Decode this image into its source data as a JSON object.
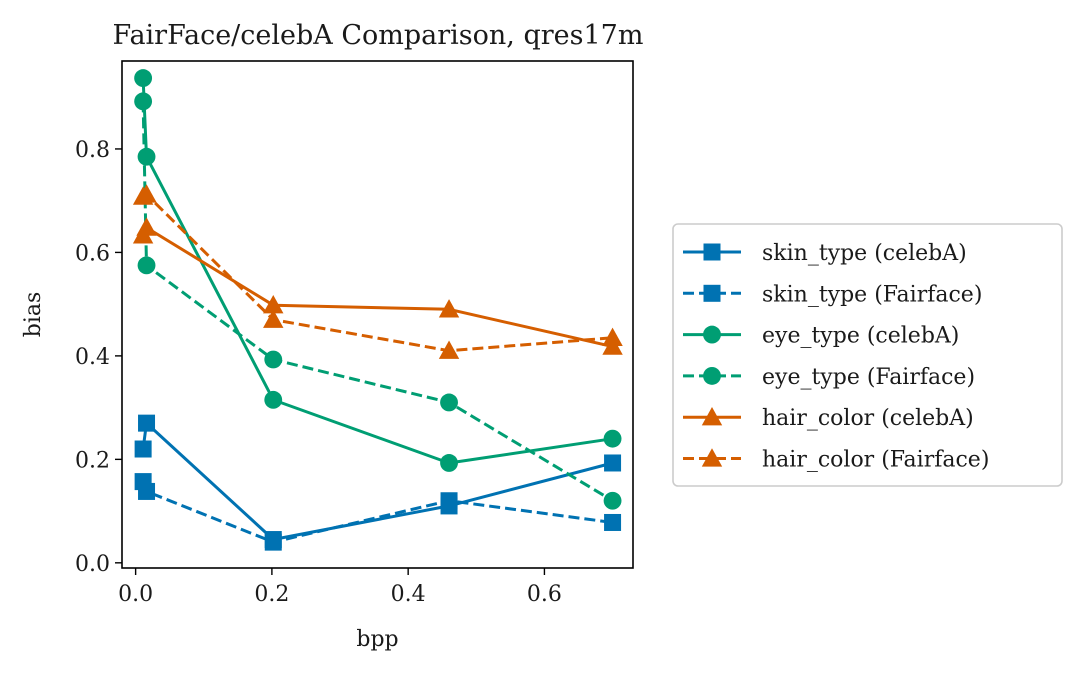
{
  "chart_data": {
    "type": "line",
    "title": "FairFace/celebA Comparison, qres17m",
    "xlabel": "bpp",
    "ylabel": "bias",
    "xlim": [
      -0.02,
      0.73
    ],
    "ylim": [
      -0.01,
      0.97
    ],
    "xticks": [
      0.0,
      0.2,
      0.4,
      0.6
    ],
    "xtick_labels": [
      "0.0",
      "0.2",
      "0.4",
      "0.6"
    ],
    "yticks": [
      0.0,
      0.2,
      0.4,
      0.6,
      0.8
    ],
    "ytick_labels": [
      "0.0",
      "0.2",
      "0.4",
      "0.6",
      "0.8"
    ],
    "grid": false,
    "legend_position": "outside-right",
    "series": [
      {
        "name": "skin_type (celebA)",
        "color": "#0072B2",
        "dash": "solid",
        "marker": "square",
        "x": [
          0.011,
          0.016,
          0.202,
          0.46,
          0.7
        ],
        "y": [
          0.22,
          0.27,
          0.045,
          0.11,
          0.193
        ]
      },
      {
        "name": "skin_type (Fairface)",
        "color": "#0072B2",
        "dash": "dashed",
        "marker": "square",
        "x": [
          0.011,
          0.016,
          0.202,
          0.46,
          0.7
        ],
        "y": [
          0.157,
          0.138,
          0.04,
          0.12,
          0.078
        ]
      },
      {
        "name": "eye_type (celebA)",
        "color": "#009E73",
        "dash": "solid",
        "marker": "circle",
        "x": [
          0.011,
          0.016,
          0.202,
          0.46,
          0.7
        ],
        "y": [
          0.937,
          0.785,
          0.315,
          0.193,
          0.24
        ]
      },
      {
        "name": "eye_type (Fairface)",
        "color": "#009E73",
        "dash": "dashed",
        "marker": "circle",
        "x": [
          0.011,
          0.016,
          0.202,
          0.46,
          0.7
        ],
        "y": [
          0.892,
          0.575,
          0.393,
          0.31,
          0.12
        ]
      },
      {
        "name": "hair_color (celebA)",
        "color": "#D55E00",
        "dash": "solid",
        "marker": "triangle",
        "x": [
          0.011,
          0.016,
          0.202,
          0.46,
          0.7
        ],
        "y": [
          0.633,
          0.648,
          0.498,
          0.49,
          0.418
        ]
      },
      {
        "name": "hair_color (Fairface)",
        "color": "#D55E00",
        "dash": "dashed",
        "marker": "triangle",
        "x": [
          0.011,
          0.016,
          0.202,
          0.46,
          0.7
        ],
        "y": [
          0.708,
          0.712,
          0.47,
          0.41,
          0.435
        ]
      }
    ]
  }
}
